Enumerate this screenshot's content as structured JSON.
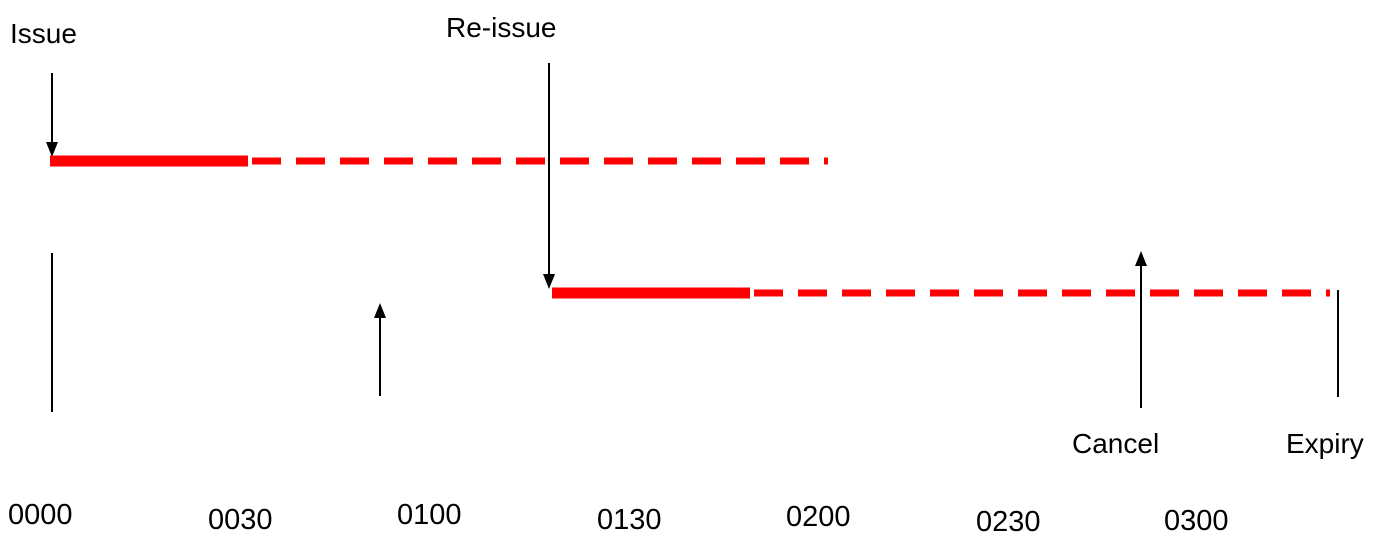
{
  "labels": {
    "issue": "Issue",
    "reissue": "Re-issue",
    "cancel": "Cancel",
    "expiry": "Expiry"
  },
  "time_ticks": [
    "0000",
    "0030",
    "0100",
    "0130",
    "0200",
    "0230",
    "0300"
  ],
  "colors": {
    "validity_bar": "#ff0000",
    "line": "#000000",
    "background": "#ffffff"
  }
}
